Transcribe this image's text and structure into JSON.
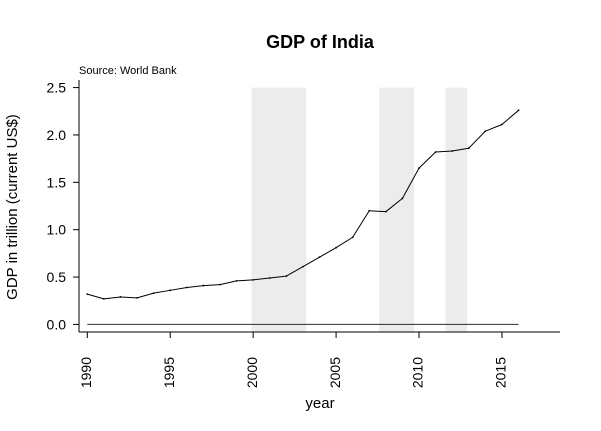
{
  "chart_data": {
    "type": "line",
    "title": "GDP of India",
    "subtitle": "Source: World Bank",
    "xlabel": "year",
    "ylabel": "GDP in trillion (current US$)",
    "xlim": [
      1989.5,
      2018.5
    ],
    "ylim": [
      -0.08,
      2.58
    ],
    "x_ticks": [
      1990,
      1995,
      2000,
      2005,
      2010,
      2015
    ],
    "y_ticks": [
      0.0,
      0.5,
      1.0,
      1.5,
      2.0,
      2.5
    ],
    "y_tick_labels": [
      "0.0",
      "0.5",
      "1.0",
      "1.5",
      "2.0",
      "2.5"
    ],
    "x_tick_labels": [
      "1990",
      "1995",
      "2000",
      "2005",
      "2010",
      "2015"
    ],
    "shaded_periods": [
      {
        "start": 1999.9,
        "end": 2003.2
      },
      {
        "start": 2007.6,
        "end": 2009.7
      },
      {
        "start": 2011.6,
        "end": 2012.9
      }
    ],
    "series": [
      {
        "name": "GDP",
        "color": "#000000",
        "x": [
          1990,
          1991,
          1992,
          1993,
          1994,
          1995,
          1996,
          1997,
          1998,
          1999,
          2000,
          2001,
          2002,
          2003,
          2004,
          2005,
          2006,
          2007,
          2008,
          2009,
          2010,
          2011,
          2012,
          2013,
          2014,
          2015,
          2016
        ],
        "values": [
          0.32,
          0.27,
          0.29,
          0.28,
          0.33,
          0.36,
          0.39,
          0.41,
          0.42,
          0.46,
          0.47,
          0.49,
          0.51,
          0.61,
          0.71,
          0.81,
          0.92,
          1.2,
          1.19,
          1.33,
          1.65,
          1.82,
          1.83,
          1.86,
          2.04,
          2.11,
          2.26
        ]
      }
    ],
    "shade_color": "#ececec",
    "axis_color": "#000000",
    "baseline_color": "#2b2b2b"
  }
}
